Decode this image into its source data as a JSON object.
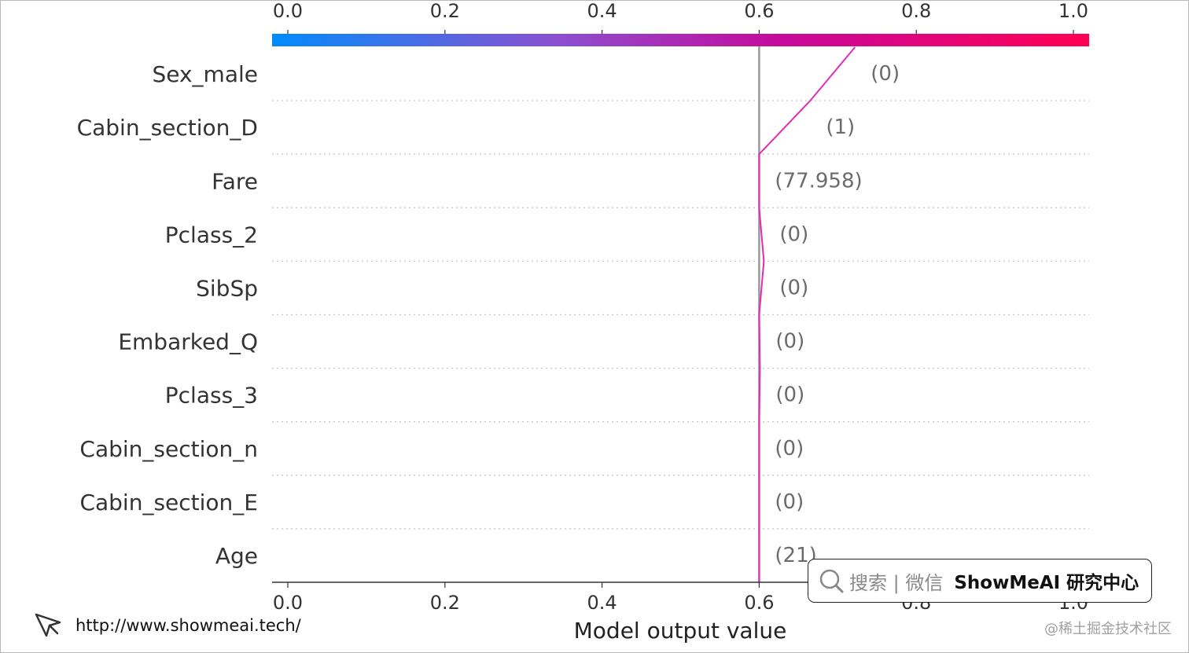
{
  "chart_data": {
    "type": "line",
    "chart_kind": "decision plot",
    "xlabel": "Model output value",
    "xlim": [
      0.0,
      1.0
    ],
    "x_ticks": [
      "0.0",
      "0.2",
      "0.4",
      "0.6",
      "0.8",
      "1.0"
    ],
    "base_value": 0.6,
    "colorbar": {
      "range": [
        0.0,
        1.0
      ],
      "colors": [
        "#008bfb",
        "#8c4fd0",
        "#c50a9c",
        "#ff0052"
      ]
    },
    "line_color": "#e32cb5",
    "grid": "dotted horizontal",
    "features": [
      {
        "name": "Sex_male",
        "value": "(0)"
      },
      {
        "name": "Cabin_section_D",
        "value": "(1)"
      },
      {
        "name": "Fare",
        "value": "(77.958)"
      },
      {
        "name": "Pclass_2",
        "value": "(0)"
      },
      {
        "name": "SibSp",
        "value": "(0)"
      },
      {
        "name": "Embarked_Q",
        "value": "(0)"
      },
      {
        "name": "Pclass_3",
        "value": "(0)"
      },
      {
        "name": "Cabin_section_n",
        "value": "(0)"
      },
      {
        "name": "Cabin_section_E",
        "value": "(0)"
      },
      {
        "name": "Age",
        "value": "(21)"
      }
    ],
    "path_values": [
      0.722,
      0.665,
      0.6,
      0.6,
      0.606,
      0.6,
      0.601,
      0.6,
      0.6,
      0.6,
      0.6
    ]
  },
  "watermark": {
    "search_label": "搜索 | 微信",
    "brand": "ShowMeAI 研究中心",
    "search_icon": "search-icon",
    "site_icon": "cursor-arrow-icon"
  },
  "footer": {
    "url": "http://www.showmeai.tech/",
    "credit": "@稀土掘金技术社区"
  }
}
